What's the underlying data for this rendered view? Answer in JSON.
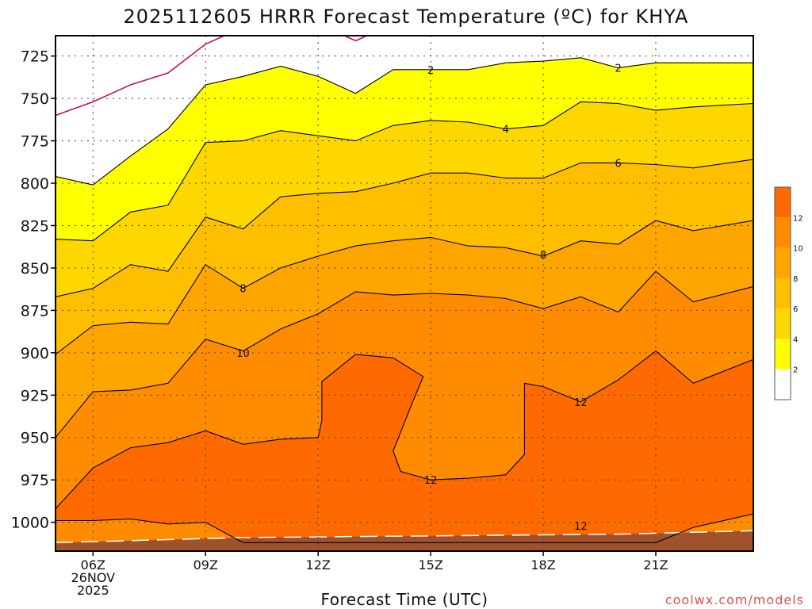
{
  "title": "2025112605 HRRR Forecast Temperature (ºC) for KHYA",
  "credit": "coolwx.com/models",
  "chart_data": {
    "type": "contour",
    "xlabel": "Forecast Time (UTC)",
    "ylabel": "",
    "x_range": [
      5,
      23.6
    ],
    "y_range_hPa": [
      713,
      1017
    ],
    "y_scale": "inverted",
    "grid": true,
    "x_ticks": [
      {
        "x": 6,
        "lines": [
          "06Z",
          "26NOV",
          "2025"
        ]
      },
      {
        "x": 9,
        "lines": [
          "09Z"
        ]
      },
      {
        "x": 12,
        "lines": [
          "12Z"
        ]
      },
      {
        "x": 15,
        "lines": [
          "15Z"
        ]
      },
      {
        "x": 18,
        "lines": [
          "18Z"
        ]
      },
      {
        "x": 21,
        "lines": [
          "21Z"
        ]
      }
    ],
    "y_ticks": [
      725,
      750,
      775,
      800,
      825,
      850,
      875,
      900,
      925,
      950,
      975,
      1000
    ],
    "colorbar": {
      "levels": [
        2,
        4,
        6,
        8,
        10,
        12
      ],
      "bins": [
        {
          "from": null,
          "to": 2,
          "color": "#ffffff"
        },
        {
          "from": 2,
          "to": 4,
          "color": "#ffff00"
        },
        {
          "from": 4,
          "to": 6,
          "color": "#ffd700"
        },
        {
          "from": 6,
          "to": 8,
          "color": "#ffbf00"
        },
        {
          "from": 8,
          "to": 10,
          "color": "#ffa500"
        },
        {
          "from": 10,
          "to": 12,
          "color": "#ff8c00"
        },
        {
          "from": 12,
          "to": null,
          "color": "#ff6a00"
        }
      ]
    },
    "bands": [
      {
        "color": "#ffff00",
        "level": 2,
        "boundary": [
          [
            5,
            796
          ],
          [
            6,
            801
          ],
          [
            7,
            784
          ],
          [
            8,
            768
          ],
          [
            9,
            742
          ],
          [
            10,
            737
          ],
          [
            11,
            731
          ],
          [
            12,
            737
          ],
          [
            13,
            747
          ],
          [
            14,
            733
          ],
          [
            15,
            733
          ],
          [
            16,
            733
          ],
          [
            17,
            729
          ],
          [
            18,
            728
          ],
          [
            19,
            726
          ],
          [
            20,
            732
          ],
          [
            21,
            729
          ],
          [
            22,
            729
          ],
          [
            23.6,
            729
          ]
        ]
      },
      {
        "color": "#ffd700",
        "level": 4,
        "boundary": [
          [
            5,
            833
          ],
          [
            6,
            834
          ],
          [
            7,
            817
          ],
          [
            8,
            813
          ],
          [
            9,
            776
          ],
          [
            10,
            775
          ],
          [
            11,
            769
          ],
          [
            12,
            772
          ],
          [
            13,
            775
          ],
          [
            14,
            766
          ],
          [
            15,
            763
          ],
          [
            16,
            764
          ],
          [
            17,
            768
          ],
          [
            18,
            766
          ],
          [
            19,
            752
          ],
          [
            20,
            753
          ],
          [
            21,
            757
          ],
          [
            22,
            755
          ],
          [
            23.6,
            753
          ]
        ]
      },
      {
        "color": "#ffbf00",
        "level": 6,
        "boundary": [
          [
            5,
            867
          ],
          [
            6,
            862
          ],
          [
            7,
            848
          ],
          [
            8,
            852
          ],
          [
            9,
            820
          ],
          [
            10,
            827
          ],
          [
            11,
            808
          ],
          [
            12,
            806
          ],
          [
            13,
            805
          ],
          [
            14,
            800
          ],
          [
            15,
            794
          ],
          [
            16,
            794
          ],
          [
            17,
            797
          ],
          [
            18,
            797
          ],
          [
            19,
            788
          ],
          [
            20,
            788
          ],
          [
            21,
            789
          ],
          [
            22,
            791
          ],
          [
            23.6,
            786
          ]
        ]
      },
      {
        "color": "#ffa500",
        "level": 8,
        "boundary": [
          [
            5,
            901
          ],
          [
            6,
            884
          ],
          [
            7,
            882
          ],
          [
            8,
            883
          ],
          [
            9,
            848
          ],
          [
            10,
            862
          ],
          [
            11,
            850
          ],
          [
            12,
            843
          ],
          [
            13,
            837
          ],
          [
            14,
            834
          ],
          [
            15,
            832
          ],
          [
            16,
            837
          ],
          [
            17,
            838
          ],
          [
            18,
            843
          ],
          [
            19,
            834
          ],
          [
            20,
            836
          ],
          [
            21,
            822
          ],
          [
            22,
            828
          ],
          [
            23.6,
            822
          ]
        ]
      },
      {
        "color": "#ff8c00",
        "level": 10,
        "boundary": [
          [
            5,
            950
          ],
          [
            6,
            923
          ],
          [
            7,
            922
          ],
          [
            8,
            918
          ],
          [
            9,
            892
          ],
          [
            10,
            899
          ],
          [
            11,
            886
          ],
          [
            12,
            877
          ],
          [
            13,
            864
          ],
          [
            14,
            866
          ],
          [
            15,
            865
          ],
          [
            16,
            866
          ],
          [
            17,
            868
          ],
          [
            18,
            874
          ],
          [
            19,
            867
          ],
          [
            20,
            876
          ],
          [
            21,
            852
          ],
          [
            22,
            870
          ],
          [
            23.6,
            861
          ]
        ]
      },
      {
        "color": "#ff6a00",
        "level": 12,
        "boundary": [
          [
            5,
            992
          ],
          [
            6,
            968
          ],
          [
            7,
            956
          ],
          [
            8,
            953
          ],
          [
            9,
            946
          ],
          [
            10,
            954
          ],
          [
            11,
            951
          ],
          [
            12,
            950
          ],
          [
            12.1,
            940
          ],
          [
            12.1,
            917
          ],
          [
            13,
            901
          ],
          [
            14,
            903
          ],
          [
            14.8,
            914
          ],
          [
            14.5,
            930
          ],
          [
            14,
            958
          ],
          [
            14.2,
            970
          ],
          [
            15,
            975
          ],
          [
            16,
            974
          ],
          [
            17,
            972
          ],
          [
            17.5,
            960
          ],
          [
            17.5,
            918
          ],
          [
            18,
            920
          ],
          [
            19,
            929
          ],
          [
            20,
            916
          ],
          [
            21,
            899
          ],
          [
            22,
            918
          ],
          [
            23.6,
            904
          ]
        ]
      },
      {
        "color": "#ff8c00",
        "level": 12,
        "boundary": [
          [
            5,
            999
          ],
          [
            6,
            999
          ],
          [
            7,
            998
          ],
          [
            8,
            1001
          ],
          [
            9,
            1000
          ],
          [
            9.5,
            1006
          ],
          [
            10,
            1012
          ],
          [
            21,
            1012
          ],
          [
            22,
            1003
          ],
          [
            23.6,
            995
          ]
        ]
      }
    ],
    "terrain": {
      "color": "#a0522d",
      "top": [
        [
          5,
          1012
        ],
        [
          10,
          1009
        ],
        [
          15,
          1008
        ],
        [
          20,
          1007
        ],
        [
          23.6,
          1005
        ]
      ]
    },
    "below2_line": {
      "color": "#c8105a",
      "points": [
        [
          5,
          760
        ],
        [
          6,
          752
        ],
        [
          7,
          742
        ],
        [
          8,
          735
        ],
        [
          9,
          718
        ],
        [
          9.5,
          713
        ]
      ]
    },
    "below2_spike": {
      "color": "#c8105a",
      "points": [
        [
          12.7,
          713
        ],
        [
          13,
          716
        ],
        [
          13.3,
          713
        ]
      ]
    },
    "contour_labels": [
      {
        "text": "2",
        "x": 15,
        "y": 733
      },
      {
        "text": "2",
        "x": 20,
        "y": 732
      },
      {
        "text": "4",
        "x": 17,
        "y": 768
      },
      {
        "text": "6",
        "x": 20,
        "y": 788
      },
      {
        "text": "8",
        "x": 10,
        "y": 862
      },
      {
        "text": "8",
        "x": 18,
        "y": 842
      },
      {
        "text": "10",
        "x": 10,
        "y": 900
      },
      {
        "text": "12",
        "x": 15,
        "y": 975
      },
      {
        "text": "12",
        "x": 19,
        "y": 929
      },
      {
        "text": "12",
        "x": 19,
        "y": 1002
      }
    ]
  }
}
